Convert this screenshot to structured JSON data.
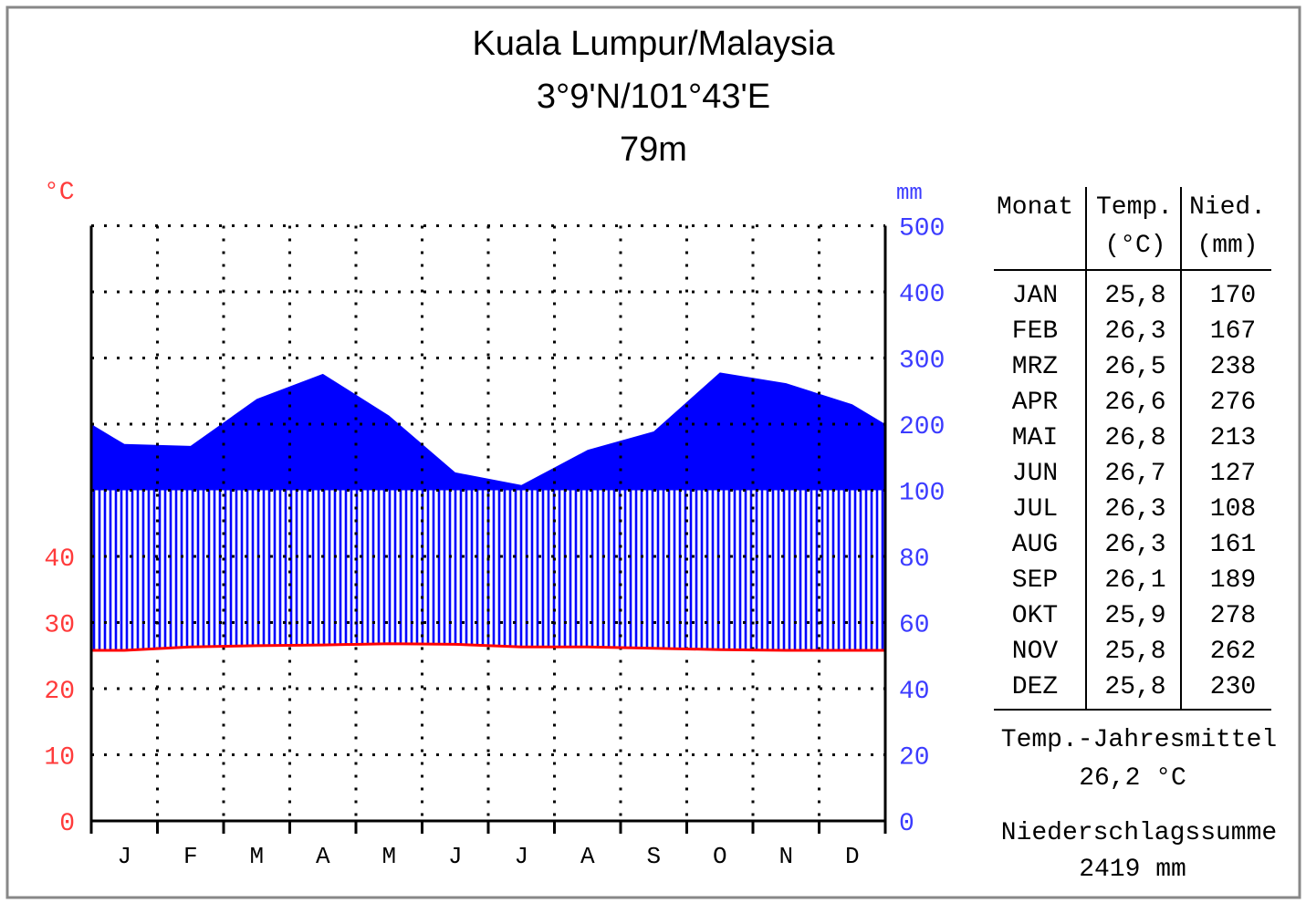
{
  "title": {
    "line1": "Kuala Lumpur/Malaysia",
    "line2": "3°9'N/101°43'E",
    "line3": "79m"
  },
  "colors": {
    "temperature": "#ff0000",
    "precipitation": "#0000ff",
    "temp_axis_text": "#ff3b3b",
    "precip_axis_text": "#3b3bff"
  },
  "chart_data": {
    "type": "area",
    "title": "Kuala Lumpur/Malaysia",
    "categories": [
      "J",
      "F",
      "M",
      "A",
      "M",
      "J",
      "J",
      "A",
      "S",
      "O",
      "N",
      "D"
    ],
    "series": [
      {
        "name": "Temp. (°C)",
        "values": [
          25.8,
          26.3,
          26.5,
          26.6,
          26.8,
          26.7,
          26.3,
          26.3,
          26.1,
          25.9,
          25.8,
          25.8
        ]
      },
      {
        "name": "Nied. (mm)",
        "values": [
          170,
          167,
          238,
          276,
          213,
          127,
          108,
          161,
          189,
          278,
          262,
          230
        ]
      }
    ],
    "left_axis": {
      "unit": "°C",
      "ticks": [
        "0",
        "10",
        "20",
        "30",
        "40"
      ]
    },
    "right_axis": {
      "unit": "mm",
      "ticks": [
        "0",
        "20",
        "40",
        "60",
        "80",
        "100",
        "200",
        "300",
        "400",
        "500"
      ]
    },
    "grid": true
  },
  "table": {
    "headers": [
      {
        "line1": "Monat",
        "line2": ""
      },
      {
        "line1": "Temp.",
        "line2": "(°C)"
      },
      {
        "line1": "Nied.",
        "line2": "(mm)"
      }
    ],
    "rows": [
      {
        "month": "JAN",
        "temp": "25,8",
        "precip": "170"
      },
      {
        "month": "FEB",
        "temp": "26,3",
        "precip": "167"
      },
      {
        "month": "MRZ",
        "temp": "26,5",
        "precip": "238"
      },
      {
        "month": "APR",
        "temp": "26,6",
        "precip": "276"
      },
      {
        "month": "MAI",
        "temp": "26,8",
        "precip": "213"
      },
      {
        "month": "JUN",
        "temp": "26,7",
        "precip": "127"
      },
      {
        "month": "JUL",
        "temp": "26,3",
        "precip": "108"
      },
      {
        "month": "AUG",
        "temp": "26,3",
        "precip": "161"
      },
      {
        "month": "SEP",
        "temp": "26,1",
        "precip": "189"
      },
      {
        "month": "OKT",
        "temp": "25,9",
        "precip": "278"
      },
      {
        "month": "NOV",
        "temp": "25,8",
        "precip": "262"
      },
      {
        "month": "DEZ",
        "temp": "25,8",
        "precip": "230"
      }
    ]
  },
  "summary": {
    "temp_label": "Temp.-Jahresmittel",
    "temp_value": "26,2 °C",
    "precip_label": "Niederschlagssumme",
    "precip_value": "2419 mm"
  }
}
